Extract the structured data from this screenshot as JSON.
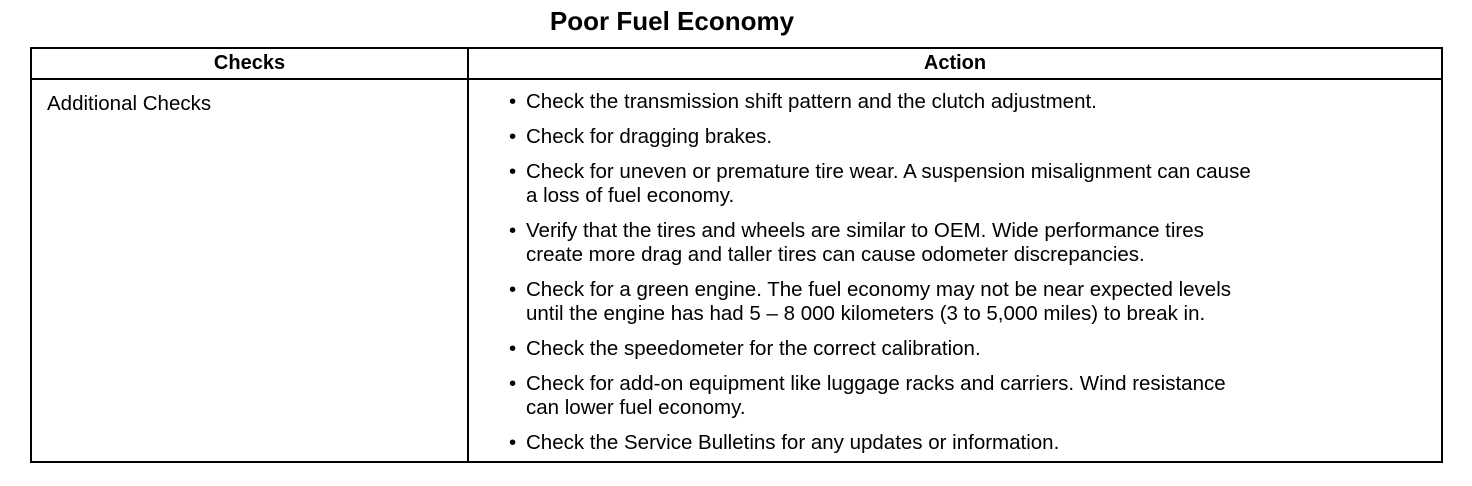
{
  "title": "Poor Fuel Economy",
  "table": {
    "headers": [
      "Checks",
      "Action"
    ],
    "rows": [
      {
        "check": "Additional Checks",
        "actions": [
          {
            "lines": [
              "Check the transmission shift pattern and the clutch adjustment."
            ]
          },
          {
            "lines": [
              "Check for dragging brakes."
            ]
          },
          {
            "lines": [
              "Check for uneven or premature tire wear. A suspension misalignment can cause",
              "a loss of fuel economy."
            ]
          },
          {
            "lines": [
              "Verify that the tires and wheels are similar to OEM. Wide performance tires",
              "create more drag and taller tires can cause odometer discrepancies."
            ]
          },
          {
            "lines": [
              "Check for a green engine. The fuel economy may not be near expected levels",
              "until the engine has had 5 – 8 000 kilometers (3 to 5,000 miles) to break in."
            ]
          },
          {
            "lines": [
              "Check the speedometer for the correct calibration."
            ]
          },
          {
            "lines": [
              "Check for add-on equipment like luggage racks and carriers. Wind resistance",
              "can lower fuel economy."
            ]
          },
          {
            "lines": [
              "Check the Service Bulletins for any updates or information."
            ]
          }
        ]
      }
    ]
  },
  "bullet_glyph": "•"
}
